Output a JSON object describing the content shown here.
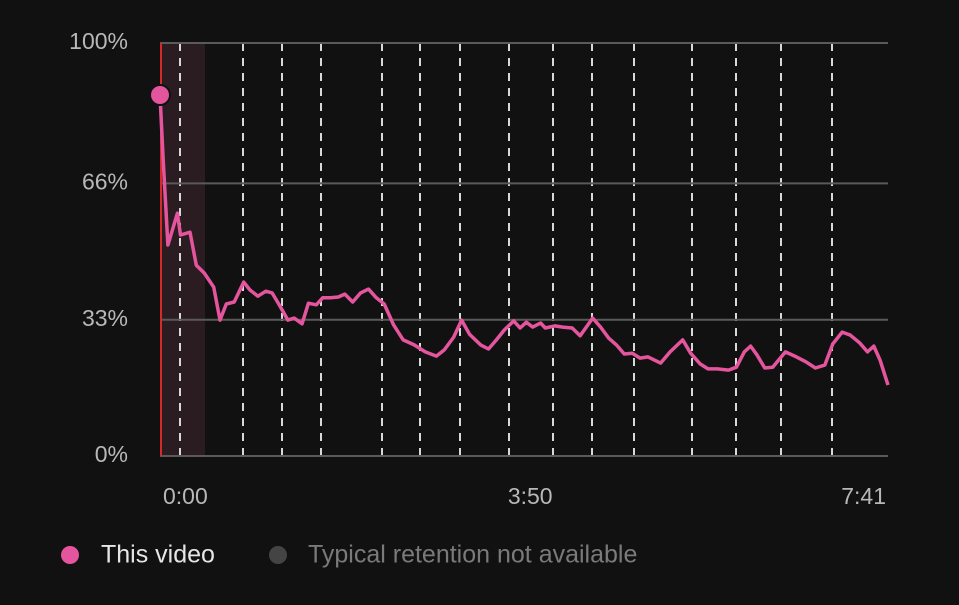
{
  "chart_data": {
    "type": "line",
    "x": [
      0,
      2,
      5,
      11,
      13,
      19,
      23,
      28,
      34,
      38,
      42,
      47,
      53,
      57,
      62,
      67,
      71,
      76,
      81,
      85,
      90,
      94,
      99,
      103,
      108,
      113,
      117,
      122,
      127,
      132,
      137,
      142,
      148,
      154,
      161,
      168,
      175,
      180,
      186,
      191,
      196,
      203,
      208,
      213,
      218,
      224,
      228,
      232,
      236,
      241,
      244,
      250,
      255,
      261,
      266,
      274,
      279,
      284,
      289,
      294,
      299,
      304,
      309,
      317,
      323,
      331,
      336,
      342,
      347,
      353,
      360,
      365,
      370,
      374,
      378,
      383,
      388,
      396,
      403,
      409,
      415,
      421,
      426,
      432,
      437,
      443,
      448,
      452,
      456,
      461
    ],
    "series": [
      {
        "name": "This video",
        "color": "#e4559d",
        "values": [
          87.4,
          71.7,
          51.1,
          58.8,
          53.5,
          54.2,
          46.2,
          44.3,
          40.9,
          32.9,
          36.8,
          37.3,
          42.1,
          40.2,
          38.7,
          39.9,
          39.5,
          36.3,
          32.9,
          33.4,
          32.0,
          37.0,
          36.6,
          38.3,
          38.3,
          38.5,
          39.2,
          37.3,
          39.5,
          40.4,
          38.3,
          36.8,
          31.7,
          28.1,
          26.9,
          25.2,
          24.2,
          25.7,
          28.8,
          32.9,
          29.5,
          26.9,
          25.9,
          28.1,
          30.5,
          32.7,
          31.0,
          32.4,
          31.2,
          32.2,
          31.0,
          31.5,
          31.2,
          31.0,
          29.1,
          33.4,
          31.2,
          28.6,
          26.9,
          24.7,
          24.9,
          23.7,
          24.0,
          22.5,
          25.2,
          28.1,
          24.9,
          22.3,
          21.1,
          21.1,
          20.8,
          21.5,
          25.2,
          26.6,
          24.5,
          21.3,
          21.5,
          25.2,
          24.0,
          22.8,
          21.3,
          22.0,
          27.1,
          30.0,
          29.3,
          27.4,
          25.2,
          26.6,
          23.2,
          17.2
        ]
      }
    ],
    "typical_legend": {
      "name": "Typical retention not available",
      "color": "#444444"
    },
    "xlim": [
      0,
      461
    ],
    "xticks": [
      {
        "value": 0,
        "label": "0:00"
      },
      {
        "value": 230,
        "label": "3:50"
      },
      {
        "value": 461,
        "label": "7:41"
      }
    ],
    "ylim": [
      0,
      100
    ],
    "yticks": [
      {
        "value": 0,
        "label": "0%"
      },
      {
        "value": 33,
        "label": "33%"
      },
      {
        "value": 66,
        "label": "66%"
      },
      {
        "value": 100,
        "label": "100%"
      }
    ],
    "grid": true
  }
}
